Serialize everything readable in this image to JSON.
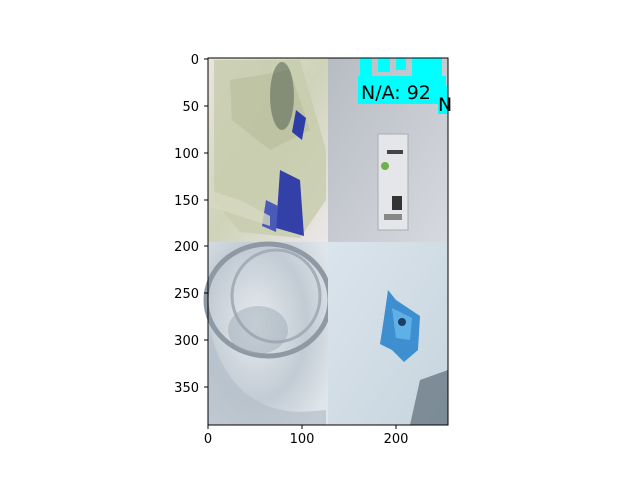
{
  "figure": {
    "kind": "image-grid",
    "panels": [
      {
        "name": "plastic-bags",
        "tone": "#d9dcc6"
      },
      {
        "name": "packaged-item",
        "tone": "#c7cad0"
      },
      {
        "name": "glass-jar",
        "tone": "#d3dbe3"
      },
      {
        "name": "blue-wrapper",
        "tone": "#d6e2ea"
      }
    ],
    "overlay": {
      "label": "N/A: 92",
      "extra_glyph": "N",
      "box_color": "#00ffff"
    }
  },
  "axes": {
    "x_ticks": [
      "0",
      "100",
      "200"
    ],
    "y_ticks": [
      "0",
      "50",
      "100",
      "150",
      "200",
      "250",
      "300",
      "350"
    ],
    "x_range": [
      0,
      256
    ],
    "y_range": [
      0,
      392
    ]
  }
}
